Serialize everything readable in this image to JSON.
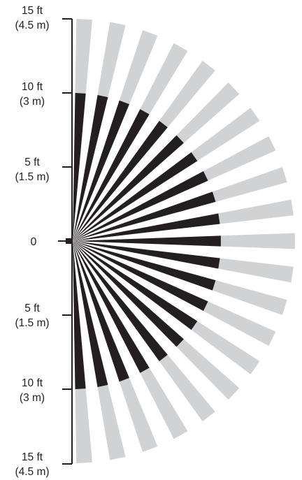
{
  "axis": {
    "labels": [
      {
        "primary": "15 ft",
        "secondary": "(4.5 m)"
      },
      {
        "primary": "10 ft",
        "secondary": "(3 m)"
      },
      {
        "primary": "5 ft",
        "secondary": "(1.5 m)"
      },
      {
        "primary": "0",
        "secondary": ""
      },
      {
        "primary": "5 ft",
        "secondary": "(1.5 m)"
      },
      {
        "primary": "10 ft",
        "secondary": "(3 m)"
      },
      {
        "primary": "15 ft",
        "secondary": "(4.5 m)"
      }
    ]
  },
  "coverage": {
    "beam_count": 21,
    "near_range_ft": 10,
    "far_range_ft": 15,
    "colors": {
      "near_zone": "#231f20",
      "far_zone": "#d1d2d4",
      "axis": "#231f20"
    }
  }
}
